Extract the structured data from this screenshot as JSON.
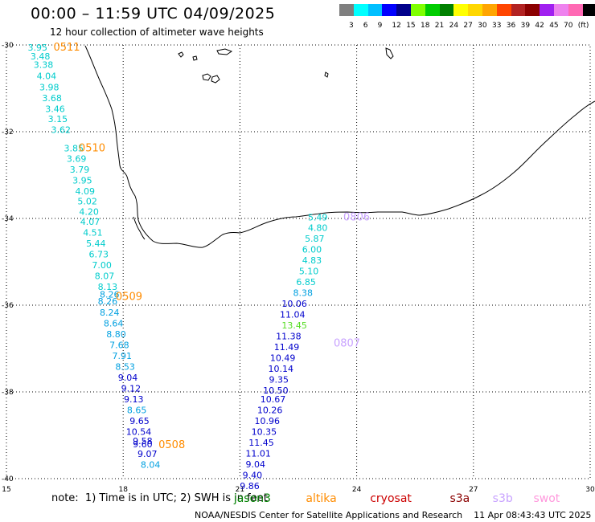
{
  "title": "00:00 – 11:59 UTC 04/09/2025",
  "subtitle": "12 hour collection of altimeter wave heights",
  "scale": {
    "colors": [
      "#7f7f7f",
      "#00ffff",
      "#00bfff",
      "#0000ff",
      "#00008b",
      "#7fff00",
      "#00cd00",
      "#008000",
      "#ffff00",
      "#ffd700",
      "#ffa500",
      "#ff4500",
      "#b22222",
      "#8b0000",
      "#a020f0",
      "#ee82ee",
      "#ff69b4",
      "#000000"
    ],
    "labels": [
      "3",
      "6",
      "9",
      "12",
      "15",
      "18",
      "21",
      "24",
      "27",
      "30",
      "33",
      "36",
      "39",
      "42",
      "45",
      "70",
      "(ft)"
    ]
  },
  "axes": {
    "x_ticks": [
      "15",
      "18",
      "21",
      "24",
      "27",
      "30"
    ],
    "y_ticks": [
      "-30",
      "-32",
      "-34",
      "-36",
      "-38",
      "-40"
    ],
    "lon_range": [
      15,
      30
    ],
    "lat_range": [
      -30,
      -40
    ]
  },
  "passes": [
    {
      "label": "0511",
      "label_color": "#ff8c00",
      "label_lon": 16.55,
      "label_lat": -30.13
    },
    {
      "label": "0510",
      "label_color": "#ff8c00",
      "label_lon": 17.2,
      "label_lat": -32.45
    },
    {
      "label": "0509",
      "label_color": "#ff8c00",
      "label_lon": 18.15,
      "label_lat": -35.88
    },
    {
      "label": "0508",
      "label_color": "#ff8c00",
      "label_lon": 19.25,
      "label_lat": -39.3
    },
    {
      "label": "0806",
      "label_color": "#c8a2ff",
      "label_lon": 24.0,
      "label_lat": -34.05
    },
    {
      "label": "0807",
      "label_color": "#c8a2ff",
      "label_lon": 23.75,
      "label_lat": -36.95
    }
  ],
  "observations": [
    {
      "v": "3.95",
      "c": "#00cccc",
      "lon": 15.8,
      "lat": -30.13
    },
    {
      "v": "3.48",
      "c": "#00cccc",
      "lon": 15.87,
      "lat": -30.33
    },
    {
      "v": "3.38",
      "c": "#00cccc",
      "lon": 15.95,
      "lat": -30.53
    },
    {
      "v": "4.04",
      "c": "#00cccc",
      "lon": 16.03,
      "lat": -30.79
    },
    {
      "v": "3.98",
      "c": "#00cccc",
      "lon": 16.1,
      "lat": -31.05
    },
    {
      "v": "3.68",
      "c": "#00cccc",
      "lon": 16.17,
      "lat": -31.3
    },
    {
      "v": "3.46",
      "c": "#00cccc",
      "lon": 16.25,
      "lat": -31.55
    },
    {
      "v": "3.15",
      "c": "#00cccc",
      "lon": 16.32,
      "lat": -31.78
    },
    {
      "v": "3.62",
      "c": "#00cccc",
      "lon": 16.4,
      "lat": -32.03
    },
    {
      "v": "3.85",
      "c": "#00cccc",
      "lon": 16.73,
      "lat": -32.45
    },
    {
      "v": "3.69",
      "c": "#00cccc",
      "lon": 16.8,
      "lat": -32.69
    },
    {
      "v": "3.79",
      "c": "#00cccc",
      "lon": 16.88,
      "lat": -32.94
    },
    {
      "v": "3.95",
      "c": "#00cccc",
      "lon": 16.95,
      "lat": -33.19
    },
    {
      "v": "4.09",
      "c": "#00cccc",
      "lon": 17.02,
      "lat": -33.44
    },
    {
      "v": "5.02",
      "c": "#00cccc",
      "lon": 17.08,
      "lat": -33.68
    },
    {
      "v": "4.20",
      "c": "#00cccc",
      "lon": 17.12,
      "lat": -33.92
    },
    {
      "v": "4.07",
      "c": "#00cccc",
      "lon": 17.15,
      "lat": -34.15
    },
    {
      "v": "4.51",
      "c": "#00cccc",
      "lon": 17.22,
      "lat": -34.4
    },
    {
      "v": "5.44",
      "c": "#00cccc",
      "lon": 17.3,
      "lat": -34.65
    },
    {
      "v": "6.73",
      "c": "#00cccc",
      "lon": 17.37,
      "lat": -34.9
    },
    {
      "v": "7.00",
      "c": "#00cccc",
      "lon": 17.45,
      "lat": -35.15
    },
    {
      "v": "8.07",
      "c": "#00cccc",
      "lon": 17.52,
      "lat": -35.4
    },
    {
      "v": "8.13",
      "c": "#00cccc",
      "lon": 17.6,
      "lat": -35.65
    },
    {
      "v": "8.26",
      "c": "#00a0e0",
      "lon": 17.65,
      "lat": -35.82
    },
    {
      "v": "8.26",
      "c": "#00a0e0",
      "lon": 17.6,
      "lat": -35.98
    },
    {
      "v": "8.24",
      "c": "#00a0e0",
      "lon": 17.65,
      "lat": -36.24
    },
    {
      "v": "8.64",
      "c": "#00a0e0",
      "lon": 17.75,
      "lat": -36.49
    },
    {
      "v": "8.80",
      "c": "#00a0e0",
      "lon": 17.82,
      "lat": -36.74
    },
    {
      "v": "7.68",
      "c": "#00a0e0",
      "lon": 17.9,
      "lat": -36.99
    },
    {
      "v": "7.91",
      "c": "#00a0e0",
      "lon": 17.97,
      "lat": -37.24
    },
    {
      "v": "8.53",
      "c": "#00a0e0",
      "lon": 18.05,
      "lat": -37.49
    },
    {
      "v": "9.04",
      "c": "#0000cc",
      "lon": 18.12,
      "lat": -37.74
    },
    {
      "v": "9.12",
      "c": "#0000cc",
      "lon": 18.2,
      "lat": -37.99
    },
    {
      "v": "9.13",
      "c": "#0000cc",
      "lon": 18.27,
      "lat": -38.24
    },
    {
      "v": "8.65",
      "c": "#00a0e0",
      "lon": 18.35,
      "lat": -38.49
    },
    {
      "v": "9.65",
      "c": "#0000cc",
      "lon": 18.42,
      "lat": -38.74
    },
    {
      "v": "10.54",
      "c": "#0000cc",
      "lon": 18.4,
      "lat": -38.99
    },
    {
      "v": "9.58",
      "c": "#0000cc",
      "lon": 18.5,
      "lat": -39.2
    },
    {
      "v": "9.60",
      "c": "#0000cc",
      "lon": 18.5,
      "lat": -39.28
    },
    {
      "v": "9.07",
      "c": "#0000cc",
      "lon": 18.62,
      "lat": -39.5
    },
    {
      "v": "8.04",
      "c": "#00a0e0",
      "lon": 18.7,
      "lat": -39.75
    },
    {
      "v": "5.49",
      "c": "#00cccc",
      "lon": 23.0,
      "lat": -34.05
    },
    {
      "v": "4.80",
      "c": "#00cccc",
      "lon": 23.0,
      "lat": -34.29
    },
    {
      "v": "5.87",
      "c": "#00cccc",
      "lon": 22.92,
      "lat": -34.54
    },
    {
      "v": "6.00",
      "c": "#00cccc",
      "lon": 22.85,
      "lat": -34.79
    },
    {
      "v": "4.83",
      "c": "#00cccc",
      "lon": 22.85,
      "lat": -35.04
    },
    {
      "v": "5.10",
      "c": "#00cccc",
      "lon": 22.77,
      "lat": -35.29
    },
    {
      "v": "6.85",
      "c": "#00cccc",
      "lon": 22.7,
      "lat": -35.54
    },
    {
      "v": "8.38",
      "c": "#00a0e0",
      "lon": 22.62,
      "lat": -35.79
    },
    {
      "v": "10.06",
      "c": "#0000cc",
      "lon": 22.4,
      "lat": -36.04
    },
    {
      "v": "11.04",
      "c": "#0000cc",
      "lon": 22.35,
      "lat": -36.29
    },
    {
      "v": "13.45",
      "c": "#55dd22",
      "lon": 22.4,
      "lat": -36.54
    },
    {
      "v": "11.38",
      "c": "#0000cc",
      "lon": 22.25,
      "lat": -36.79
    },
    {
      "v": "11.49",
      "c": "#0000cc",
      "lon": 22.2,
      "lat": -37.04
    },
    {
      "v": "10.49",
      "c": "#0000cc",
      "lon": 22.1,
      "lat": -37.29
    },
    {
      "v": "10.14",
      "c": "#0000cc",
      "lon": 22.05,
      "lat": -37.54
    },
    {
      "v": "9.35",
      "c": "#0000cc",
      "lon": 22.0,
      "lat": -37.79
    },
    {
      "v": "10.50",
      "c": "#0000cc",
      "lon": 21.92,
      "lat": -38.04
    },
    {
      "v": "10.67",
      "c": "#0000cc",
      "lon": 21.85,
      "lat": -38.24
    },
    {
      "v": "10.26",
      "c": "#0000cc",
      "lon": 21.77,
      "lat": -38.49
    },
    {
      "v": "10.96",
      "c": "#0000cc",
      "lon": 21.7,
      "lat": -38.74
    },
    {
      "v": "10.35",
      "c": "#0000cc",
      "lon": 21.62,
      "lat": -38.99
    },
    {
      "v": "11.45",
      "c": "#0000cc",
      "lon": 21.55,
      "lat": -39.24
    },
    {
      "v": "11.01",
      "c": "#0000cc",
      "lon": 21.47,
      "lat": -39.49
    },
    {
      "v": "9.04",
      "c": "#0000cc",
      "lon": 21.4,
      "lat": -39.74
    },
    {
      "v": "9.40",
      "c": "#0000cc",
      "lon": 21.32,
      "lat": -39.99
    },
    {
      "v": "9.86",
      "c": "#0000cc",
      "lon": 21.25,
      "lat": -40.24
    }
  ],
  "footnote": "note:  1) Time is in UTC; 2) SWH is in feet",
  "satellites": [
    {
      "name": "jason3",
      "color": "#008000",
      "lon": 21.05
    },
    {
      "name": "altika",
      "color": "#ff8c00",
      "lon": 22.9
    },
    {
      "name": "cryosat",
      "color": "#cc0000",
      "lon": 24.55
    },
    {
      "name": "s3a",
      "color": "#8b0000",
      "lon": 26.6
    },
    {
      "name": "s3b",
      "color": "#c8a2ff",
      "lon": 27.7
    },
    {
      "name": "swot",
      "color": "#ff99dd",
      "lon": 28.75
    }
  ],
  "credit": "NOAA/NESDIS Center for Satellite Applications and Research    11 Apr 08:43:43 UTC 2025"
}
